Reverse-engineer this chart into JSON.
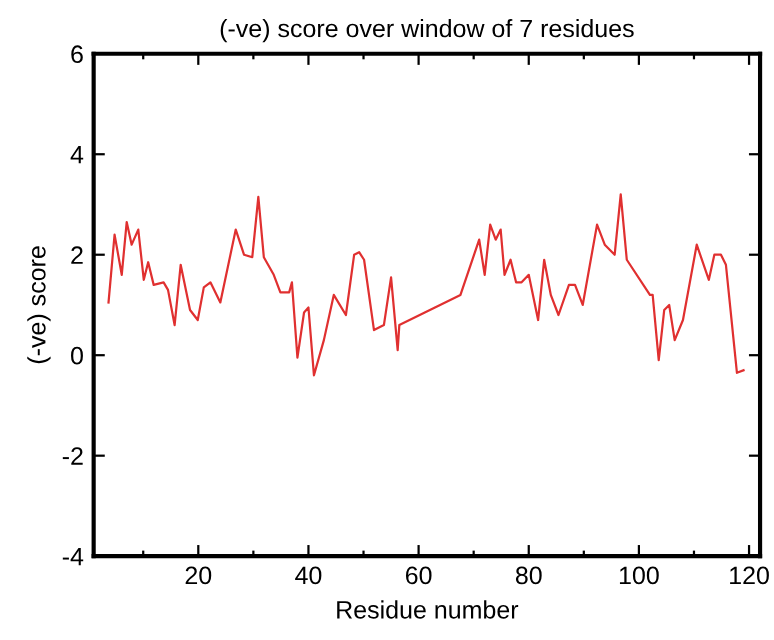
{
  "chart_data": {
    "type": "line",
    "title": "(-ve) score over window of 7 residues",
    "xlabel": "Residue number",
    "ylabel": "(-ve) score",
    "x": [
      3.7,
      4.8,
      6.1,
      7,
      7.9,
      9.1,
      10.1,
      10.9,
      11.9,
      13.7,
      14.5,
      15.7,
      16.8,
      18.5,
      19.9,
      21,
      22.2,
      24,
      26.8,
      28.3,
      29.8,
      30.9,
      31.9,
      33.7,
      34.9,
      36.5,
      37,
      38,
      39.2,
      40,
      41,
      42.8,
      44.6,
      46.8,
      48.3,
      49.2,
      50.1,
      51.9,
      53.7,
      55,
      56.2,
      56.5,
      67.6,
      71,
      72,
      73,
      74,
      74.9,
      75.6,
      76.7,
      77.7,
      78.7,
      80,
      81.7,
      82.8,
      84,
      85.4,
      87.3,
      88.4,
      89.8,
      92.4,
      93.8,
      95.6,
      96.7,
      97.8,
      102,
      102.5,
      103.6,
      104.6,
      105.5,
      106.5,
      108,
      110.5,
      112.7,
      113.7,
      114.9,
      115.8,
      117.8,
      119
    ],
    "series": [
      {
        "color": "#e03030",
        "values": [
          1.05,
          2.4,
          1.6,
          2.65,
          2.2,
          2.5,
          1.5,
          1.85,
          1.4,
          1.45,
          1.3,
          0.6,
          1.8,
          0.9,
          0.7,
          1.35,
          1.45,
          1.05,
          2.5,
          2.0,
          1.95,
          3.15,
          1.95,
          1.6,
          1.25,
          1.25,
          1.45,
          -0.05,
          0.85,
          0.95,
          -0.4,
          0.3,
          1.2,
          0.8,
          2.0,
          2.05,
          1.9,
          0.5,
          0.6,
          1.55,
          0.1,
          0.6,
          1.2,
          2.3,
          1.6,
          2.6,
          2.3,
          2.5,
          1.6,
          1.9,
          1.45,
          1.45,
          1.6,
          0.7,
          1.9,
          1.2,
          0.8,
          1.4,
          1.4,
          1.0,
          2.6,
          2.2,
          2.0,
          3.2,
          1.9,
          1.2,
          1.2,
          -0.1,
          0.9,
          1.0,
          0.3,
          0.7,
          2.2,
          1.5,
          2.0,
          2.0,
          1.8,
          -0.35,
          -0.3
        ]
      }
    ],
    "xlim": [
      1,
      122
    ],
    "ylim": [
      -4,
      6
    ],
    "xticks": [
      {
        "value": 10,
        "label": null
      },
      20,
      {
        "value": 30,
        "label": null
      },
      40,
      {
        "value": 50,
        "label": null
      },
      60,
      {
        "value": 70,
        "label": null
      },
      80,
      {
        "value": 90,
        "label": null
      },
      100,
      {
        "value": 110,
        "label": null
      },
      120
    ],
    "yticks": [
      -4,
      -2,
      0,
      2,
      4,
      6
    ],
    "grid": false,
    "legend": false,
    "marker": "none",
    "line_style": "solid"
  }
}
